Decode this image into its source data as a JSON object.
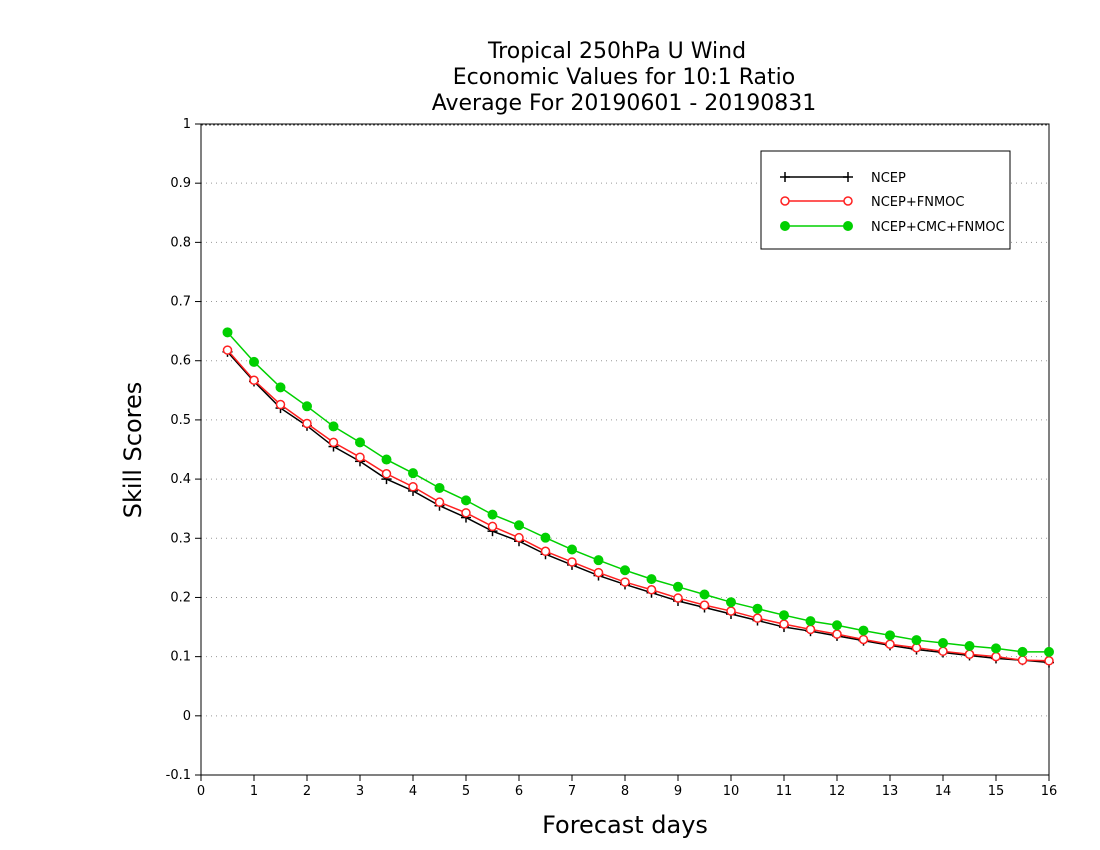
{
  "chart_data": {
    "type": "line",
    "title_lines": [
      "Tropical 250hPa U Wind",
      "Economic Values for 10:1 Ratio",
      "Average For 20190601 - 20190831"
    ],
    "xlabel": "Forecast days",
    "ylabel": "Skill Scores",
    "xlim": [
      0,
      16
    ],
    "ylim": [
      -0.1,
      1
    ],
    "xticks": [
      0,
      1,
      2,
      3,
      4,
      5,
      6,
      7,
      8,
      9,
      10,
      11,
      12,
      13,
      14,
      15,
      16
    ],
    "xtick_labels": [
      "0",
      "1",
      "2",
      "3",
      "4",
      "5",
      "6",
      "7",
      "8",
      "9",
      "10",
      "11",
      "12",
      "13",
      "14",
      "15",
      "16"
    ],
    "yticks": [
      -0.1,
      0,
      0.1,
      0.2,
      0.3,
      0.4,
      0.5,
      0.6,
      0.7,
      0.8,
      0.9,
      1
    ],
    "ytick_labels": [
      "-0.1",
      "0",
      "0.1",
      "0.2",
      "0.3",
      "0.4",
      "0.5",
      "0.6",
      "0.7",
      "0.8",
      "0.9",
      "1"
    ],
    "grid": "horizontal dotted",
    "legend_position": "top-right",
    "x": [
      0.5,
      1,
      1.5,
      2,
      2.5,
      3,
      3.5,
      4,
      4.5,
      5,
      5.5,
      6,
      6.5,
      7,
      7.5,
      8,
      8.5,
      9,
      9.5,
      10,
      10.5,
      11,
      11.5,
      12,
      12.5,
      13,
      13.5,
      14,
      14.5,
      15,
      15.5,
      16
    ],
    "series": [
      {
        "name": "NCEP",
        "color": "#000000",
        "marker": "plus",
        "values": [
          0.615,
          0.565,
          0.52,
          0.49,
          0.455,
          0.43,
          0.4,
          0.38,
          0.355,
          0.335,
          0.312,
          0.295,
          0.273,
          0.255,
          0.237,
          0.222,
          0.208,
          0.194,
          0.183,
          0.172,
          0.161,
          0.15,
          0.143,
          0.135,
          0.127,
          0.119,
          0.112,
          0.107,
          0.102,
          0.097,
          0.094,
          0.09
        ]
      },
      {
        "name": "NCEP+FNMOC",
        "color": "#ff2020",
        "marker": "open-circle",
        "values": [
          0.618,
          0.567,
          0.526,
          0.494,
          0.462,
          0.437,
          0.409,
          0.387,
          0.361,
          0.343,
          0.32,
          0.301,
          0.278,
          0.26,
          0.242,
          0.226,
          0.213,
          0.199,
          0.187,
          0.177,
          0.165,
          0.155,
          0.146,
          0.138,
          0.129,
          0.121,
          0.115,
          0.109,
          0.104,
          0.1,
          0.094,
          0.093
        ]
      },
      {
        "name": "NCEP+CMC+FNMOC",
        "color": "#00d000",
        "marker": "filled-circle",
        "values": [
          0.648,
          0.598,
          0.555,
          0.523,
          0.489,
          0.462,
          0.433,
          0.41,
          0.385,
          0.364,
          0.34,
          0.322,
          0.301,
          0.281,
          0.263,
          0.246,
          0.231,
          0.218,
          0.205,
          0.192,
          0.181,
          0.17,
          0.16,
          0.153,
          0.144,
          0.136,
          0.128,
          0.123,
          0.118,
          0.114,
          0.108,
          0.108
        ]
      }
    ]
  }
}
